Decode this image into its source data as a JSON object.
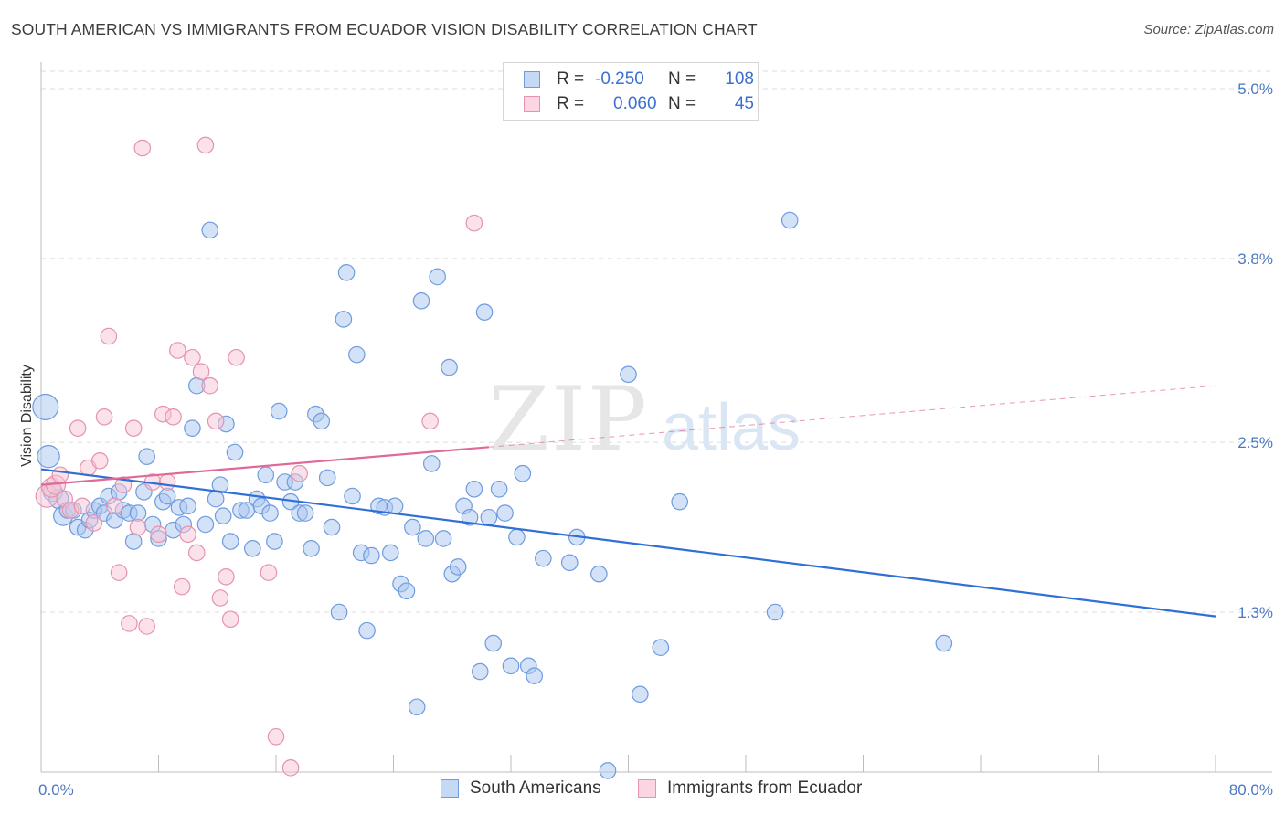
{
  "title": "SOUTH AMERICAN VS IMMIGRANTS FROM ECUADOR VISION DISABILITY CORRELATION CHART",
  "source": "Source: ZipAtlas.com",
  "watermark": {
    "zip": "ZIP",
    "atlas": "atlas"
  },
  "legend": {
    "rows": [
      {
        "r_label": "R =",
        "r_value": "-0.250",
        "n_label": "N =",
        "n_value": "108",
        "color": "#a9c6f0",
        "border": "#6f9be0"
      },
      {
        "r_label": "R =",
        "r_value": "0.060",
        "n_label": "N =",
        "n_value": "45",
        "color": "#f7c3d3",
        "border": "#e693ad"
      }
    ]
  },
  "bottom_legend": [
    {
      "label": "South Americans",
      "color": "#a9c6f0",
      "border": "#6f9be0"
    },
    {
      "label": "Immigrants from Ecuador",
      "color": "#f7c3d3",
      "border": "#e693ad"
    }
  ],
  "chart_data": {
    "type": "scatter",
    "title": "SOUTH AMERICAN VS IMMIGRANTS FROM ECUADOR VISION DISABILITY CORRELATION CHART",
    "xlabel": "",
    "ylabel": "Vision Disability",
    "xlim": [
      0,
      80
    ],
    "ylim": [
      0.0,
      5.2
    ],
    "x_tick_labels": {
      "left": "0.0%",
      "right": "80.0%"
    },
    "y_ticks": [
      {
        "value": 1.3,
        "label": "1.3%"
      },
      {
        "value": 2.5,
        "label": "2.5%"
      },
      {
        "value": 3.8,
        "label": "3.8%"
      },
      {
        "value": 5.0,
        "label": "5.0%"
      }
    ],
    "grid": true,
    "series": [
      {
        "name": "South Americans",
        "color": "#6f9be0",
        "fill": "#a9c6f0",
        "trend": {
          "x": [
            0,
            80
          ],
          "y": [
            2.31,
            1.27
          ],
          "style": "solid",
          "color": "#2f6fd6"
        },
        "points": [
          [
            0.3,
            2.75,
            16
          ],
          [
            0.5,
            2.4,
            14
          ],
          [
            0.8,
            2.15,
            12
          ],
          [
            1.2,
            2.1,
            12
          ],
          [
            1.5,
            1.98,
            12
          ],
          [
            1.8,
            2.02,
            10
          ],
          [
            2.2,
            2.02,
            10
          ],
          [
            2.5,
            1.9,
            10
          ],
          [
            3.0,
            1.88,
            10
          ],
          [
            3.3,
            1.95,
            10
          ],
          [
            3.6,
            2.02,
            10
          ],
          [
            4.0,
            2.05,
            10
          ],
          [
            4.3,
            2.0,
            10
          ],
          [
            4.6,
            2.12,
            10
          ],
          [
            5.0,
            1.95,
            10
          ],
          [
            5.3,
            2.15,
            10
          ],
          [
            5.6,
            2.02,
            10
          ],
          [
            6.0,
            2.0,
            10
          ],
          [
            6.3,
            1.8,
            10
          ],
          [
            6.6,
            2.0,
            10
          ],
          [
            7.0,
            2.15,
            10
          ],
          [
            7.2,
            2.4,
            10
          ],
          [
            7.6,
            1.92,
            10
          ],
          [
            8.0,
            1.82,
            10
          ],
          [
            8.3,
            2.08,
            10
          ],
          [
            8.6,
            2.12,
            10
          ],
          [
            9.0,
            1.88,
            10
          ],
          [
            9.4,
            2.04,
            10
          ],
          [
            9.7,
            1.92,
            10
          ],
          [
            10.0,
            2.05,
            10
          ],
          [
            10.3,
            2.6,
            10
          ],
          [
            10.6,
            2.9,
            10
          ],
          [
            11.2,
            1.92,
            10
          ],
          [
            11.5,
            4.0,
            10
          ],
          [
            11.9,
            2.1,
            10
          ],
          [
            12.2,
            2.2,
            10
          ],
          [
            12.4,
            1.98,
            10
          ],
          [
            12.6,
            2.63,
            10
          ],
          [
            12.9,
            1.8,
            10
          ],
          [
            13.2,
            2.43,
            10
          ],
          [
            13.6,
            2.02,
            10
          ],
          [
            14.0,
            2.02,
            10
          ],
          [
            14.4,
            1.75,
            10
          ],
          [
            14.7,
            2.1,
            10
          ],
          [
            15.0,
            2.05,
            10
          ],
          [
            15.3,
            2.27,
            10
          ],
          [
            15.6,
            2.0,
            10
          ],
          [
            15.9,
            1.8,
            10
          ],
          [
            16.2,
            2.72,
            10
          ],
          [
            16.6,
            2.22,
            10
          ],
          [
            17.0,
            2.08,
            10
          ],
          [
            17.3,
            2.22,
            10
          ],
          [
            17.6,
            2.0,
            10
          ],
          [
            18.0,
            2.0,
            10
          ],
          [
            18.4,
            1.75,
            10
          ],
          [
            18.7,
            2.7,
            10
          ],
          [
            19.1,
            2.65,
            10
          ],
          [
            19.5,
            2.25,
            10
          ],
          [
            19.8,
            1.9,
            10
          ],
          [
            20.3,
            1.3,
            10
          ],
          [
            20.6,
            3.37,
            10
          ],
          [
            20.8,
            3.7,
            10
          ],
          [
            21.2,
            2.12,
            10
          ],
          [
            21.5,
            3.12,
            10
          ],
          [
            21.8,
            1.72,
            10
          ],
          [
            22.2,
            1.17,
            10
          ],
          [
            22.5,
            1.7,
            10
          ],
          [
            23.0,
            2.05,
            10
          ],
          [
            23.4,
            2.04,
            10
          ],
          [
            23.8,
            1.72,
            10
          ],
          [
            24.1,
            2.05,
            10
          ],
          [
            24.5,
            1.5,
            10
          ],
          [
            24.9,
            1.45,
            10
          ],
          [
            25.3,
            1.9,
            10
          ],
          [
            25.6,
            0.63,
            10
          ],
          [
            25.9,
            3.5,
            10
          ],
          [
            26.2,
            1.82,
            10
          ],
          [
            26.6,
            2.35,
            10
          ],
          [
            27.0,
            3.67,
            10
          ],
          [
            27.4,
            1.82,
            10
          ],
          [
            27.8,
            3.03,
            10
          ],
          [
            28.0,
            1.57,
            10
          ],
          [
            28.4,
            1.62,
            10
          ],
          [
            28.8,
            2.05,
            10
          ],
          [
            29.2,
            1.97,
            10
          ],
          [
            29.5,
            2.17,
            10
          ],
          [
            29.9,
            0.88,
            10
          ],
          [
            30.2,
            3.42,
            10
          ],
          [
            30.5,
            1.97,
            10
          ],
          [
            30.8,
            1.08,
            10
          ],
          [
            31.2,
            2.17,
            10
          ],
          [
            31.6,
            2.0,
            10
          ],
          [
            32.0,
            0.92,
            10
          ],
          [
            32.4,
            1.83,
            10
          ],
          [
            32.8,
            2.28,
            10
          ],
          [
            33.2,
            0.92,
            10
          ],
          [
            33.6,
            0.85,
            10
          ],
          [
            34.2,
            1.68,
            10
          ],
          [
            36.0,
            1.65,
            10
          ],
          [
            36.5,
            1.83,
            10
          ],
          [
            38.0,
            1.57,
            10
          ],
          [
            40.0,
            2.98,
            10
          ],
          [
            38.6,
            0.18,
            10
          ],
          [
            40.8,
            0.72,
            10
          ],
          [
            42.2,
            1.05,
            10
          ],
          [
            43.5,
            2.08,
            10
          ],
          [
            50.0,
            1.3,
            10
          ],
          [
            51.0,
            4.07,
            10
          ],
          [
            61.5,
            1.08,
            10
          ]
        ]
      },
      {
        "name": "Immigrants from Ecuador",
        "color": "#e693ad",
        "fill": "#f7c3d3",
        "trend": {
          "x": [
            0,
            80
          ],
          "y": [
            2.2,
            2.9
          ],
          "style": "solid-then-dashed",
          "solid_until_x": 30.5,
          "color": "#e0699a"
        },
        "points": [
          [
            0.4,
            2.12,
            14
          ],
          [
            0.7,
            2.18,
            12
          ],
          [
            1.0,
            2.2,
            12
          ],
          [
            1.3,
            2.27,
            10
          ],
          [
            1.6,
            2.1,
            10
          ],
          [
            2.0,
            2.02,
            10
          ],
          [
            2.5,
            2.6,
            10
          ],
          [
            2.8,
            2.05,
            10
          ],
          [
            3.2,
            2.32,
            10
          ],
          [
            3.6,
            1.93,
            10
          ],
          [
            4.0,
            2.37,
            10
          ],
          [
            4.3,
            2.68,
            10
          ],
          [
            4.6,
            3.25,
            10
          ],
          [
            5.0,
            2.05,
            10
          ],
          [
            5.3,
            1.58,
            10
          ],
          [
            5.6,
            2.2,
            10
          ],
          [
            6.0,
            1.22,
            10
          ],
          [
            6.3,
            2.6,
            10
          ],
          [
            6.6,
            1.9,
            10
          ],
          [
            6.9,
            4.58,
            10
          ],
          [
            7.2,
            1.2,
            10
          ],
          [
            7.6,
            2.22,
            10
          ],
          [
            8.0,
            1.85,
            10
          ],
          [
            8.3,
            2.7,
            10
          ],
          [
            8.6,
            2.22,
            10
          ],
          [
            9.0,
            2.68,
            10
          ],
          [
            9.3,
            3.15,
            10
          ],
          [
            9.6,
            1.48,
            10
          ],
          [
            10.0,
            1.85,
            10
          ],
          [
            10.3,
            3.1,
            10
          ],
          [
            10.6,
            1.72,
            10
          ],
          [
            10.9,
            3.0,
            10
          ],
          [
            11.2,
            4.6,
            10
          ],
          [
            11.5,
            2.9,
            10
          ],
          [
            11.9,
            2.65,
            10
          ],
          [
            12.2,
            1.4,
            10
          ],
          [
            12.6,
            1.55,
            10
          ],
          [
            12.9,
            1.25,
            10
          ],
          [
            13.3,
            3.1,
            10
          ],
          [
            15.5,
            1.58,
            10
          ],
          [
            17.0,
            0.2,
            10
          ],
          [
            16.0,
            0.42,
            10
          ],
          [
            17.6,
            2.28,
            10
          ],
          [
            26.5,
            2.65,
            10
          ],
          [
            29.5,
            4.05,
            10
          ]
        ]
      }
    ]
  }
}
